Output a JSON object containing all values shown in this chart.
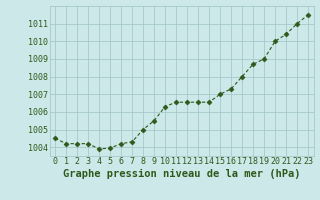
{
  "x": [
    0,
    1,
    2,
    3,
    4,
    5,
    6,
    7,
    8,
    9,
    10,
    11,
    12,
    13,
    14,
    15,
    16,
    17,
    18,
    19,
    20,
    21,
    22,
    23
  ],
  "y": [
    1004.5,
    1004.2,
    1004.2,
    1004.2,
    1003.9,
    1003.95,
    1004.2,
    1004.3,
    1005.0,
    1005.5,
    1006.3,
    1006.55,
    1006.55,
    1006.55,
    1006.55,
    1007.0,
    1007.3,
    1008.0,
    1008.7,
    1009.0,
    1010.0,
    1010.4,
    1011.0,
    1011.5
  ],
  "line_color": "#2d5a1b",
  "marker_color": "#2d5a1b",
  "bg_color": "#cce8e8",
  "grid_color": "#a0c4c4",
  "xlabel": "Graphe pression niveau de la mer (hPa)",
  "xlabel_color": "#2d5a1b",
  "ylabel_ticks": [
    1004,
    1005,
    1006,
    1007,
    1008,
    1009,
    1010,
    1011
  ],
  "xlim": [
    -0.5,
    23.5
  ],
  "ylim": [
    1003.5,
    1012.0
  ],
  "tick_label_color": "#2d5a1b",
  "tick_fontsize": 6,
  "xlabel_fontsize": 7.5,
  "marker_size": 2.5,
  "line_width": 0.8
}
